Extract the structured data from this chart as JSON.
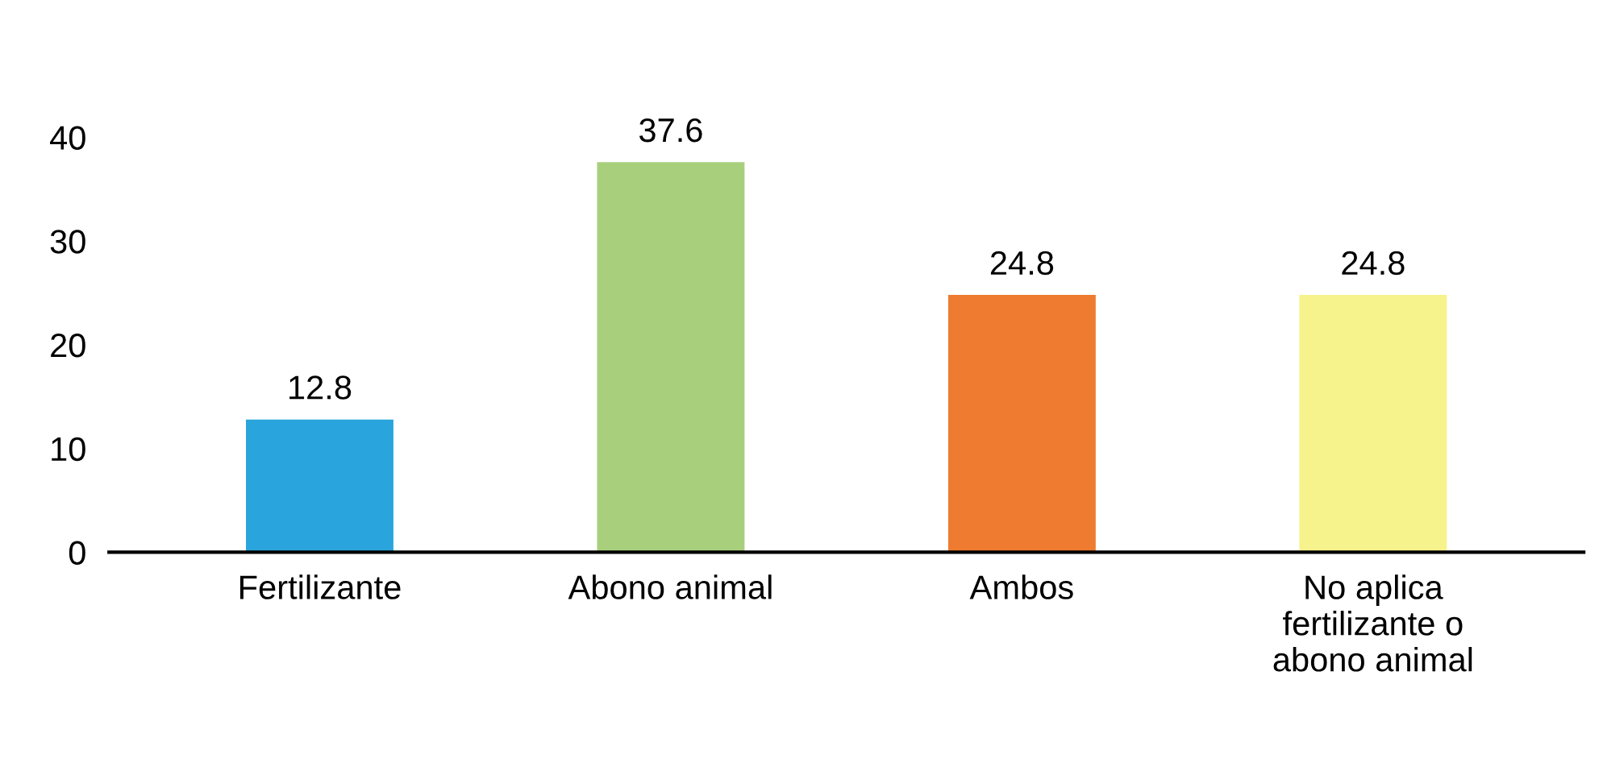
{
  "chart_data": {
    "type": "bar",
    "categories": [
      "Fertilizante",
      "Abono animal",
      "Ambos",
      "No aplica fertilizante o abono animal"
    ],
    "values": [
      12.8,
      37.6,
      24.8,
      24.8
    ],
    "colors": [
      "#2aa4dc",
      "#a8cf7c",
      "#ee7b30",
      "#f6f28c"
    ],
    "ylim": [
      0,
      40
    ],
    "yticks": [
      0,
      10,
      20,
      30,
      40
    ],
    "data_labels": true,
    "grid": false,
    "legend": false
  }
}
